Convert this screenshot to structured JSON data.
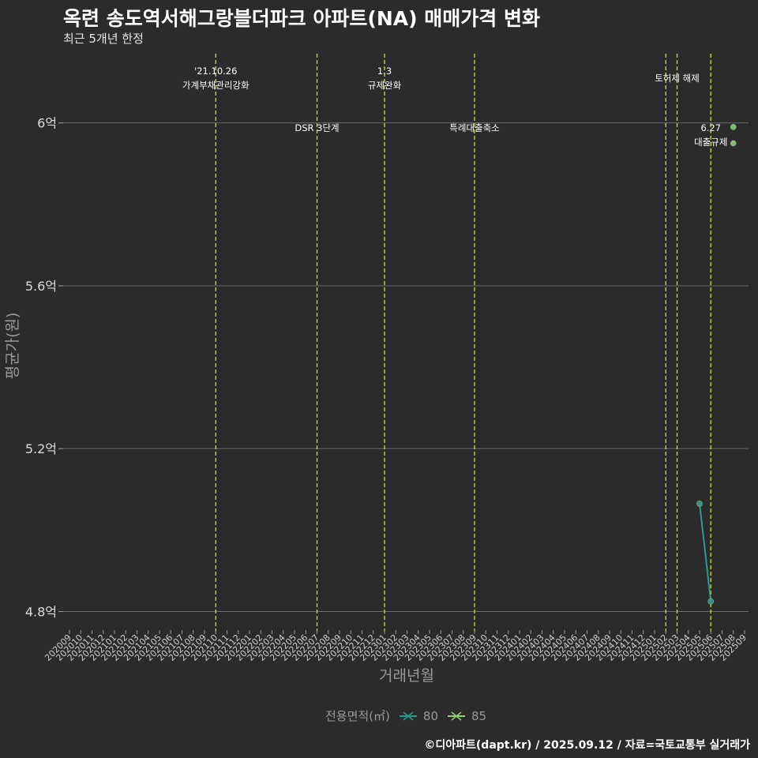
{
  "chart_data": {
    "type": "line",
    "title": "옥련 송도역서해그랑블더파크 아파트(NA) 매매가격 변화",
    "subtitle": "최근 5개년 한정",
    "xlabel": "거래년월",
    "ylabel": "평균가(원)",
    "categories": [
      "202009",
      "202010",
      "202011",
      "202012",
      "202101",
      "202102",
      "202103",
      "202104",
      "202105",
      "202106",
      "202107",
      "202108",
      "202109",
      "202110",
      "202111",
      "202112",
      "202201",
      "202202",
      "202203",
      "202204",
      "202205",
      "202206",
      "202207",
      "202208",
      "202209",
      "202210",
      "202211",
      "202212",
      "202301",
      "202302",
      "202303",
      "202304",
      "202305",
      "202306",
      "202307",
      "202308",
      "202309",
      "202310",
      "202311",
      "202312",
      "202401",
      "202402",
      "202403",
      "202404",
      "202405",
      "202406",
      "202407",
      "202408",
      "202409",
      "202410",
      "202411",
      "202412",
      "202501",
      "202502",
      "202503",
      "202504",
      "202505",
      "202506",
      "202507",
      "202508",
      "202509"
    ],
    "y_ticks": [
      {
        "value": 4.8,
        "label": "4.8억"
      },
      {
        "value": 5.2,
        "label": "5.2억"
      },
      {
        "value": 5.6,
        "label": "5.6억"
      },
      {
        "value": 6.0,
        "label": "6억"
      }
    ],
    "ylim": [
      4.77,
      6.17
    ],
    "series": [
      {
        "name": "80",
        "color": "#2a9d8f",
        "points": [
          {
            "x": "202505",
            "y": 5.065
          },
          {
            "x": "202506",
            "y": 4.825
          }
        ]
      },
      {
        "name": "85",
        "color": "#8fd175",
        "points": [
          {
            "x": "202508",
            "y": 5.99
          },
          {
            "x": "202508",
            "y": 5.95
          }
        ]
      }
    ],
    "events": [
      {
        "x": "202110",
        "lines": [
          "'21.10.26",
          "가계부채관리강화"
        ],
        "row": "top"
      },
      {
        "x": "202207",
        "lines": [
          "DSR 3단계"
        ],
        "row": "mid"
      },
      {
        "x": "202301",
        "lines": [
          "1.3",
          "규제완화"
        ],
        "row": "top"
      },
      {
        "x": "202309",
        "lines": [
          "특례대출축소"
        ],
        "row": "mid"
      },
      {
        "x": "202502",
        "lines": [],
        "row": "none"
      },
      {
        "x": "202503",
        "lines": [
          "토허제 해제"
        ],
        "row": "top"
      },
      {
        "x": "202506",
        "lines": [
          "6.27",
          "대출규제"
        ],
        "row": "mid"
      }
    ],
    "legend": {
      "title": "전용면적(㎡)",
      "position": "bottom"
    },
    "caption": "©디아파트(dapt.kr) / 2025.09.12 / 자료=국토교통부 실거래가"
  }
}
